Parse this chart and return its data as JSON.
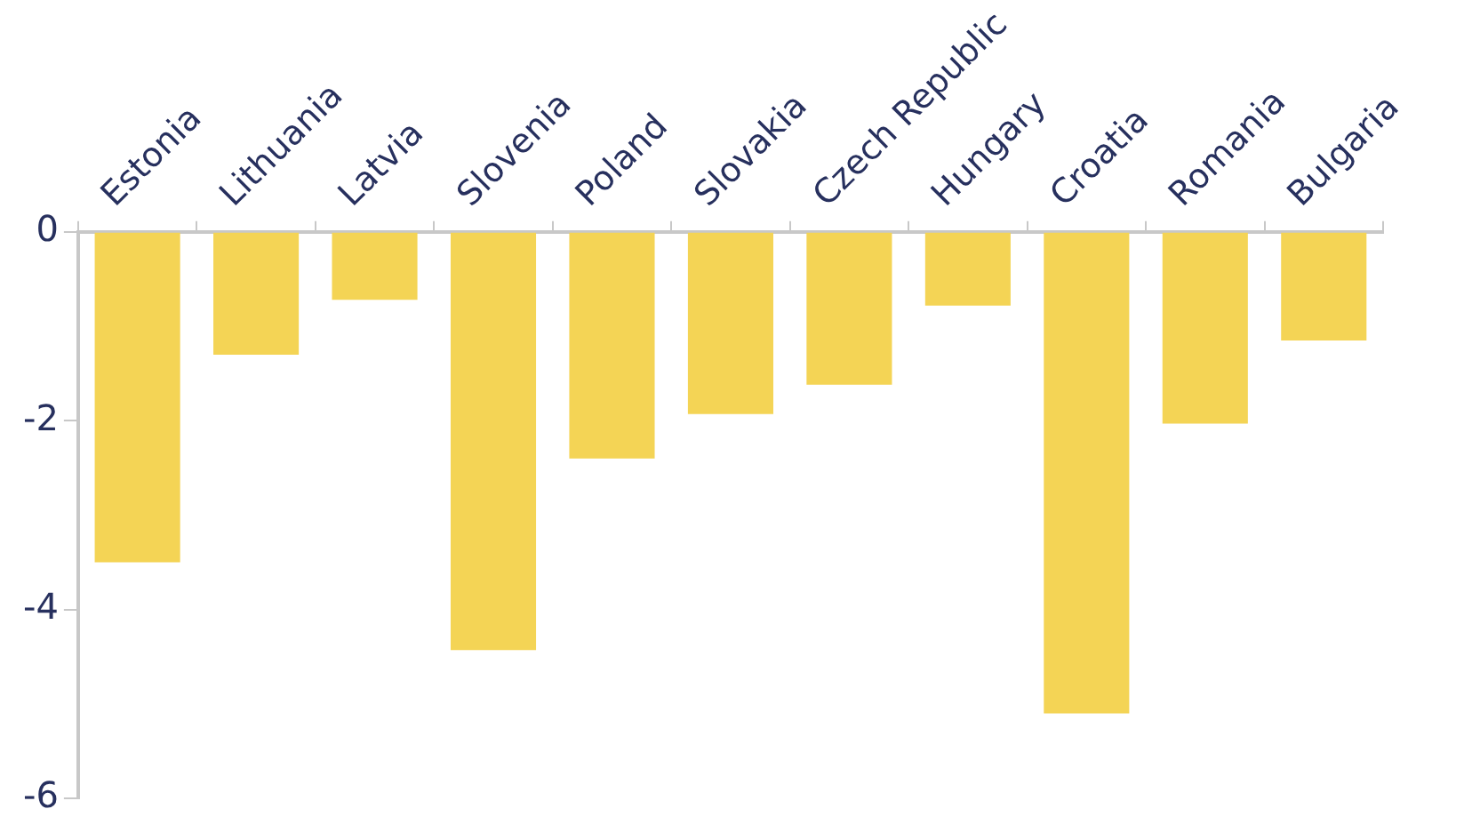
{
  "chart_data": {
    "type": "bar",
    "categories": [
      "Estonia",
      "Lithuania",
      "Latvia",
      "Slovenia",
      "Poland",
      "Slovakia",
      "Czech Republic",
      "Hungary",
      "Croatia",
      "Romania",
      "Bulgaria"
    ],
    "values": [
      -3.5,
      -1.3,
      -0.72,
      -4.43,
      -2.4,
      -1.93,
      -1.62,
      -0.78,
      -5.1,
      -2.03,
      -1.15
    ],
    "color": "#f4d455",
    "ylim": [
      -6,
      0
    ],
    "yticks": [
      -6,
      -4,
      -2,
      0
    ],
    "grid": false,
    "legend": false
  }
}
